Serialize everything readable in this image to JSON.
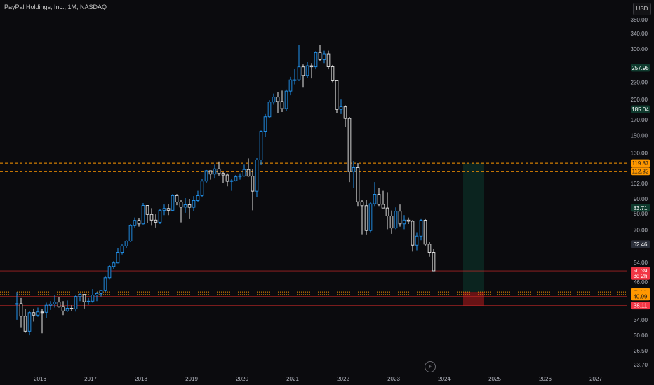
{
  "header": {
    "symbol_title": "PayPal Holdings, Inc., 1M, NASDAQ",
    "currency": "USD"
  },
  "icons": {
    "bolt": "lightning-bolt-icon"
  },
  "colors": {
    "background": "#0b0b0e",
    "candle_up": "#2196f3",
    "candle_down": "#e8e8e8",
    "resistance": "#ff9800",
    "stop_zone": "#b71c1c",
    "target_zone": "#0d3b2e",
    "red_line": "#c62828"
  },
  "chart_data": {
    "type": "candlestick",
    "title": "PayPal Holdings, Inc., 1M, NASDAQ",
    "y_scale": "log",
    "y_ticks": [
      23.7,
      26.5,
      30,
      34,
      38,
      42,
      46,
      54,
      62,
      70,
      80,
      90,
      102,
      130,
      150,
      170,
      185,
      200,
      230,
      260,
      300,
      340,
      380
    ],
    "y_tick_labels": [
      "23.70",
      "26.50",
      "30.00",
      "34.00",
      "38.00",
      "42.00",
      "46.00",
      "54.00",
      "62.00",
      "70.00",
      "80.00",
      "90.00",
      "102.00",
      "130.00",
      "150.00",
      "170.00",
      "185.00",
      "200.00",
      "230.00",
      "260.00",
      "300.00",
      "340.00",
      "380.00"
    ],
    "x_labels": [
      "2016",
      "2017",
      "2018",
      "2019",
      "2020",
      "2021",
      "2022",
      "2023",
      "2024",
      "2025",
      "2026",
      "2027"
    ],
    "price_labels": [
      {
        "text": "257.95",
        "value": 257.95,
        "color": "#0f3b2e"
      },
      {
        "text": "185.04",
        "value": 185.04,
        "color": "#0f3b2e"
      },
      {
        "text": "119.87",
        "value": 119.87,
        "color": "#ff9800"
      },
      {
        "text": "112.32",
        "value": 112.32,
        "color": "#ff9800"
      },
      {
        "text": "83.71",
        "value": 83.71,
        "color": "#0f3b2e"
      },
      {
        "text": "62.46",
        "value": 62.46,
        "color": "#2a2e39"
      },
      {
        "text": "50.39",
        "value": 50.39,
        "color": "#f23645"
      },
      {
        "text": "3d 2h",
        "value": 48.4,
        "color": "#f23645"
      },
      {
        "text": "42.55",
        "value": 42.55,
        "color": "#ff9800"
      },
      {
        "text": "41.66",
        "value": 41.66,
        "color": "#ff9800"
      },
      {
        "text": "40.99",
        "value": 40.99,
        "color": "#ff9800"
      },
      {
        "text": "38.11",
        "value": 38.11,
        "color": "#f23645"
      }
    ],
    "horizontal_lines": [
      {
        "value": 119.87,
        "style": "dashed",
        "color": "#ff9800"
      },
      {
        "value": 112.32,
        "style": "dashed",
        "color": "#ff9800"
      },
      {
        "value": 50.39,
        "style": "solid",
        "color": "#c62828"
      },
      {
        "value": 42.55,
        "style": "dotted",
        "color": "#ff9800"
      },
      {
        "value": 41.66,
        "style": "dotted",
        "color": "#ff9800"
      },
      {
        "value": 40.99,
        "style": "solid",
        "color": "#c62828"
      },
      {
        "value": 38.11,
        "style": "solid",
        "color": "#c62828"
      }
    ],
    "position_box": {
      "start": "2024-05",
      "end": "2024-10",
      "target_top": 119.87,
      "entry": 42.55,
      "stop": 38.11
    },
    "candles": [
      {
        "t": "2015-07",
        "o": 38.5,
        "h": 42.5,
        "l": 34.0,
        "c": 38.7
      },
      {
        "t": "2015-08",
        "o": 38.7,
        "h": 40.5,
        "l": 32.0,
        "c": 35.0
      },
      {
        "t": "2015-09",
        "o": 35.0,
        "h": 37.0,
        "l": 30.6,
        "c": 31.0
      },
      {
        "t": "2015-10",
        "o": 31.0,
        "h": 36.5,
        "l": 30.0,
        "c": 36.0
      },
      {
        "t": "2015-11",
        "o": 36.0,
        "h": 37.2,
        "l": 33.5,
        "c": 35.3
      },
      {
        "t": "2015-12",
        "o": 35.3,
        "h": 37.5,
        "l": 34.8,
        "c": 36.2
      },
      {
        "t": "2016-01",
        "o": 36.2,
        "h": 37.0,
        "l": 30.5,
        "c": 36.1
      },
      {
        "t": "2016-02",
        "o": 36.1,
        "h": 39.0,
        "l": 34.4,
        "c": 38.2
      },
      {
        "t": "2016-03",
        "o": 38.2,
        "h": 39.5,
        "l": 36.8,
        "c": 38.6
      },
      {
        "t": "2016-04",
        "o": 38.6,
        "h": 41.5,
        "l": 37.5,
        "c": 39.2
      },
      {
        "t": "2016-05",
        "o": 39.2,
        "h": 40.8,
        "l": 37.5,
        "c": 37.8
      },
      {
        "t": "2016-06",
        "o": 37.8,
        "h": 39.5,
        "l": 35.3,
        "c": 36.5
      },
      {
        "t": "2016-07",
        "o": 36.5,
        "h": 39.7,
        "l": 36.2,
        "c": 37.3
      },
      {
        "t": "2016-08",
        "o": 37.3,
        "h": 38.2,
        "l": 36.5,
        "c": 37.1
      },
      {
        "t": "2016-09",
        "o": 37.1,
        "h": 41.5,
        "l": 36.3,
        "c": 41.0
      },
      {
        "t": "2016-10",
        "o": 41.0,
        "h": 42.0,
        "l": 39.5,
        "c": 41.7
      },
      {
        "t": "2016-11",
        "o": 41.7,
        "h": 41.7,
        "l": 37.2,
        "c": 39.3
      },
      {
        "t": "2016-12",
        "o": 39.3,
        "h": 40.5,
        "l": 38.3,
        "c": 39.5
      },
      {
        "t": "2017-01",
        "o": 39.5,
        "h": 43.5,
        "l": 39.0,
        "c": 41.5
      },
      {
        "t": "2017-02",
        "o": 41.5,
        "h": 42.5,
        "l": 39.5,
        "c": 42.0
      },
      {
        "t": "2017-03",
        "o": 42.0,
        "h": 43.2,
        "l": 41.0,
        "c": 43.0
      },
      {
        "t": "2017-04",
        "o": 43.0,
        "h": 48.5,
        "l": 42.5,
        "c": 47.7
      },
      {
        "t": "2017-05",
        "o": 47.7,
        "h": 53.0,
        "l": 47.0,
        "c": 52.2
      },
      {
        "t": "2017-06",
        "o": 52.2,
        "h": 54.5,
        "l": 51.0,
        "c": 53.7
      },
      {
        "t": "2017-07",
        "o": 53.7,
        "h": 60.5,
        "l": 53.5,
        "c": 58.5
      },
      {
        "t": "2017-08",
        "o": 58.5,
        "h": 62.5,
        "l": 57.5,
        "c": 61.6
      },
      {
        "t": "2017-09",
        "o": 61.6,
        "h": 64.5,
        "l": 60.5,
        "c": 64.0
      },
      {
        "t": "2017-10",
        "o": 64.0,
        "h": 73.5,
        "l": 63.5,
        "c": 72.6
      },
      {
        "t": "2017-11",
        "o": 72.6,
        "h": 77.5,
        "l": 71.5,
        "c": 75.7
      },
      {
        "t": "2017-12",
        "o": 75.7,
        "h": 77.0,
        "l": 72.0,
        "c": 73.6
      },
      {
        "t": "2018-01",
        "o": 73.6,
        "h": 87.0,
        "l": 73.2,
        "c": 85.3
      },
      {
        "t": "2018-02",
        "o": 85.3,
        "h": 85.5,
        "l": 74.0,
        "c": 79.4
      },
      {
        "t": "2018-03",
        "o": 79.4,
        "h": 83.5,
        "l": 72.5,
        "c": 75.9
      },
      {
        "t": "2018-04",
        "o": 75.9,
        "h": 79.5,
        "l": 71.5,
        "c": 74.6
      },
      {
        "t": "2018-05",
        "o": 74.6,
        "h": 83.0,
        "l": 73.5,
        "c": 82.1
      },
      {
        "t": "2018-06",
        "o": 82.1,
        "h": 86.0,
        "l": 79.0,
        "c": 83.3
      },
      {
        "t": "2018-07",
        "o": 83.3,
        "h": 86.5,
        "l": 79.0,
        "c": 82.1
      },
      {
        "t": "2018-08",
        "o": 82.1,
        "h": 93.5,
        "l": 81.5,
        "c": 92.4
      },
      {
        "t": "2018-09",
        "o": 92.4,
        "h": 93.5,
        "l": 85.5,
        "c": 87.8
      },
      {
        "t": "2018-10",
        "o": 87.8,
        "h": 89.0,
        "l": 74.5,
        "c": 84.2
      },
      {
        "t": "2018-11",
        "o": 84.2,
        "h": 90.5,
        "l": 80.5,
        "c": 85.8
      },
      {
        "t": "2018-12",
        "o": 85.8,
        "h": 90.0,
        "l": 76.5,
        "c": 84.1
      },
      {
        "t": "2019-01",
        "o": 84.1,
        "h": 92.0,
        "l": 81.5,
        "c": 88.8
      },
      {
        "t": "2019-02",
        "o": 88.8,
        "h": 96.0,
        "l": 87.5,
        "c": 92.3
      },
      {
        "t": "2019-03",
        "o": 92.3,
        "h": 106.0,
        "l": 91.5,
        "c": 103.8
      },
      {
        "t": "2019-04",
        "o": 103.8,
        "h": 113.5,
        "l": 102.5,
        "c": 112.8
      },
      {
        "t": "2019-05",
        "o": 112.8,
        "h": 113.0,
        "l": 105.0,
        "c": 109.8
      },
      {
        "t": "2019-06",
        "o": 109.8,
        "h": 119.0,
        "l": 106.5,
        "c": 114.5
      },
      {
        "t": "2019-07",
        "o": 114.5,
        "h": 121.5,
        "l": 108.5,
        "c": 110.4
      },
      {
        "t": "2019-08",
        "o": 110.4,
        "h": 112.0,
        "l": 102.0,
        "c": 109.0
      },
      {
        "t": "2019-09",
        "o": 109.0,
        "h": 110.5,
        "l": 99.5,
        "c": 103.6
      },
      {
        "t": "2019-10",
        "o": 103.6,
        "h": 105.5,
        "l": 96.0,
        "c": 104.1
      },
      {
        "t": "2019-11",
        "o": 104.1,
        "h": 109.0,
        "l": 103.5,
        "c": 107.4
      },
      {
        "t": "2019-12",
        "o": 107.4,
        "h": 110.5,
        "l": 105.0,
        "c": 108.2
      },
      {
        "t": "2020-01",
        "o": 108.2,
        "h": 119.0,
        "l": 107.5,
        "c": 113.9
      },
      {
        "t": "2020-02",
        "o": 113.9,
        "h": 124.5,
        "l": 107.5,
        "c": 108.0
      },
      {
        "t": "2020-03",
        "o": 108.0,
        "h": 114.0,
        "l": 82.1,
        "c": 95.7
      },
      {
        "t": "2020-04",
        "o": 95.7,
        "h": 125.0,
        "l": 91.5,
        "c": 123.0
      },
      {
        "t": "2020-05",
        "o": 123.0,
        "h": 156.0,
        "l": 118.0,
        "c": 155.0
      },
      {
        "t": "2020-06",
        "o": 155.0,
        "h": 178.0,
        "l": 148.0,
        "c": 174.2
      },
      {
        "t": "2020-07",
        "o": 174.2,
        "h": 199.0,
        "l": 172.0,
        "c": 196.1
      },
      {
        "t": "2020-08",
        "o": 196.1,
        "h": 210.0,
        "l": 192.0,
        "c": 204.1
      },
      {
        "t": "2020-09",
        "o": 204.1,
        "h": 212.5,
        "l": 180.0,
        "c": 197.0
      },
      {
        "t": "2020-10",
        "o": 197.0,
        "h": 215.0,
        "l": 181.0,
        "c": 186.1
      },
      {
        "t": "2020-11",
        "o": 186.1,
        "h": 217.0,
        "l": 182.0,
        "c": 214.1
      },
      {
        "t": "2020-12",
        "o": 214.1,
        "h": 240.0,
        "l": 207.0,
        "c": 234.2
      },
      {
        "t": "2021-01",
        "o": 234.2,
        "h": 256.0,
        "l": 226.0,
        "c": 234.3
      },
      {
        "t": "2021-02",
        "o": 234.3,
        "h": 309.0,
        "l": 232.0,
        "c": 259.9
      },
      {
        "t": "2021-03",
        "o": 259.9,
        "h": 265.0,
        "l": 220.0,
        "c": 242.8
      },
      {
        "t": "2021-04",
        "o": 242.8,
        "h": 270.0,
        "l": 238.0,
        "c": 262.3
      },
      {
        "t": "2021-05",
        "o": 262.3,
        "h": 268.0,
        "l": 237.0,
        "c": 260.0
      },
      {
        "t": "2021-06",
        "o": 260.0,
        "h": 295.0,
        "l": 255.0,
        "c": 291.5
      },
      {
        "t": "2021-07",
        "o": 291.5,
        "h": 310.0,
        "l": 273.0,
        "c": 275.5
      },
      {
        "t": "2021-08",
        "o": 275.5,
        "h": 296.0,
        "l": 268.0,
        "c": 288.7
      },
      {
        "t": "2021-09",
        "o": 288.7,
        "h": 296.0,
        "l": 255.0,
        "c": 260.2
      },
      {
        "t": "2021-10",
        "o": 260.2,
        "h": 264.0,
        "l": 230.0,
        "c": 232.6
      },
      {
        "t": "2021-11",
        "o": 232.6,
        "h": 234.0,
        "l": 180.0,
        "c": 184.9
      },
      {
        "t": "2021-12",
        "o": 184.9,
        "h": 200.0,
        "l": 178.0,
        "c": 188.6
      },
      {
        "t": "2022-01",
        "o": 188.6,
        "h": 191.0,
        "l": 160.0,
        "c": 171.9
      },
      {
        "t": "2022-02",
        "o": 171.9,
        "h": 174.0,
        "l": 103.0,
        "c": 112.0
      },
      {
        "t": "2022-03",
        "o": 112.0,
        "h": 122.0,
        "l": 98.0,
        "c": 115.7
      },
      {
        "t": "2022-04",
        "o": 115.7,
        "h": 120.0,
        "l": 85.0,
        "c": 87.9
      },
      {
        "t": "2022-05",
        "o": 87.9,
        "h": 89.0,
        "l": 67.7,
        "c": 85.2
      },
      {
        "t": "2022-06",
        "o": 85.2,
        "h": 89.0,
        "l": 67.6,
        "c": 69.8
      },
      {
        "t": "2022-07",
        "o": 69.8,
        "h": 88.0,
        "l": 68.5,
        "c": 86.5
      },
      {
        "t": "2022-08",
        "o": 86.5,
        "h": 103.0,
        "l": 85.0,
        "c": 93.4
      },
      {
        "t": "2022-09",
        "o": 93.4,
        "h": 98.0,
        "l": 85.0,
        "c": 86.1
      },
      {
        "t": "2022-10",
        "o": 86.1,
        "h": 96.0,
        "l": 84.0,
        "c": 83.6
      },
      {
        "t": "2022-11",
        "o": 83.6,
        "h": 95.0,
        "l": 70.5,
        "c": 78.4
      },
      {
        "t": "2022-12",
        "o": 78.4,
        "h": 82.0,
        "l": 68.0,
        "c": 71.2
      },
      {
        "t": "2023-01",
        "o": 71.2,
        "h": 84.0,
        "l": 70.5,
        "c": 81.5
      },
      {
        "t": "2023-02",
        "o": 81.5,
        "h": 86.0,
        "l": 72.0,
        "c": 73.6
      },
      {
        "t": "2023-03",
        "o": 73.6,
        "h": 79.0,
        "l": 70.5,
        "c": 75.9
      },
      {
        "t": "2023-04",
        "o": 75.9,
        "h": 77.5,
        "l": 73.5,
        "c": 75.2
      },
      {
        "t": "2023-05",
        "o": 75.2,
        "h": 76.0,
        "l": 58.9,
        "c": 62.0
      },
      {
        "t": "2023-06",
        "o": 62.0,
        "h": 68.5,
        "l": 59.5,
        "c": 66.7
      },
      {
        "t": "2023-07",
        "o": 66.7,
        "h": 76.5,
        "l": 64.5,
        "c": 75.8
      },
      {
        "t": "2023-08",
        "o": 75.8,
        "h": 76.5,
        "l": 61.5,
        "c": 62.5
      },
      {
        "t": "2023-09",
        "o": 62.5,
        "h": 63.5,
        "l": 56.5,
        "c": 58.5
      },
      {
        "t": "2023-10",
        "o": 58.5,
        "h": 60.0,
        "l": 50.3,
        "c": 50.4
      }
    ]
  }
}
